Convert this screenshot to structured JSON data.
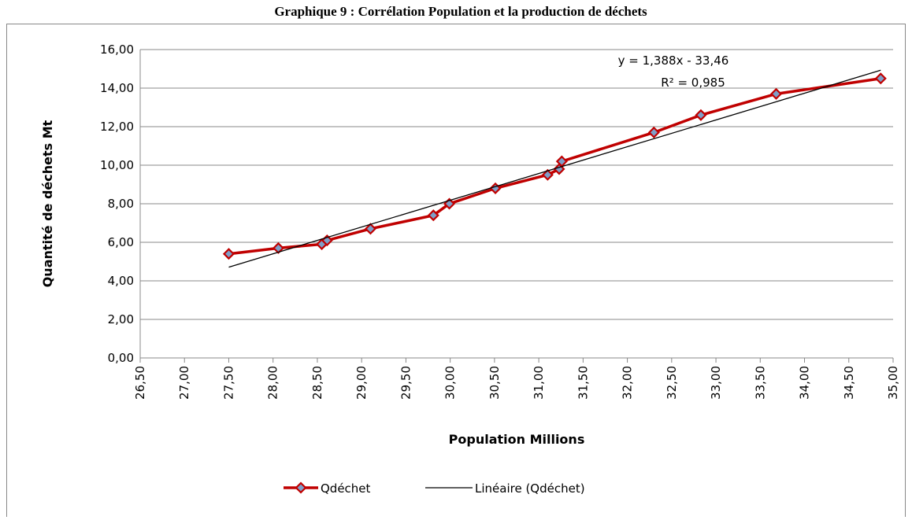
{
  "chart_data": {
    "type": "line",
    "title": "Graphique 9 : Corrélation Population et la production de déchets",
    "x_label": "Population Millions",
    "y_label": "Quantité de déchets Mt",
    "annotations": [
      "y = 1,388x - 33,46",
      "R² = 0,985"
    ],
    "xlim": [
      26.5,
      35
    ],
    "xticks": [
      {
        "value": 26.5,
        "label": "26,50"
      },
      {
        "value": 27,
        "label": "27,00"
      },
      {
        "value": 27.5,
        "label": "27,50"
      },
      {
        "value": 28,
        "label": "28,00"
      },
      {
        "value": 28.5,
        "label": "28,50"
      },
      {
        "value": 29,
        "label": "29,00"
      },
      {
        "value": 29.5,
        "label": "29,50"
      },
      {
        "value": 30,
        "label": "30,00"
      },
      {
        "value": 30.5,
        "label": "30,50"
      },
      {
        "value": 31,
        "label": "31,00"
      },
      {
        "value": 31.5,
        "label": "31,50"
      },
      {
        "value": 32,
        "label": "32,00"
      },
      {
        "value": 32.5,
        "label": "32,50"
      },
      {
        "value": 33,
        "label": "33,00"
      },
      {
        "value": 33.5,
        "label": "33,50"
      },
      {
        "value": 34,
        "label": "34,00"
      },
      {
        "value": 34.5,
        "label": "34,50"
      },
      {
        "value": 35,
        "label": "35,00"
      }
    ],
    "ylim": [
      0,
      16
    ],
    "yticks": [
      {
        "value": 0,
        "label": "0,00"
      },
      {
        "value": 2,
        "label": "2,00"
      },
      {
        "value": 4,
        "label": "4,00"
      },
      {
        "value": 6,
        "label": "6,00"
      },
      {
        "value": 8,
        "label": "8,00"
      },
      {
        "value": 10,
        "label": "10,00"
      },
      {
        "value": 12,
        "label": "12,00"
      },
      {
        "value": 14,
        "label": "14,00"
      },
      {
        "value": 16,
        "label": "16,00"
      }
    ],
    "grid": true,
    "legend": "bottom",
    "series": [
      {
        "name": "Qdéchet",
        "color": "#c00000",
        "marker_color": "#7f9fc8",
        "x": [
          27.5,
          28.06,
          28.55,
          28.61,
          29.1,
          29.81,
          29.99,
          30.51,
          31.1,
          31.23,
          31.26,
          32.3,
          32.83,
          33.68,
          34.86
        ],
        "values": [
          5.4,
          5.7,
          5.9,
          6.1,
          6.7,
          7.4,
          8.0,
          8.8,
          9.5,
          9.8,
          10.2,
          11.7,
          12.6,
          13.7,
          14.5
        ]
      },
      {
        "name": "Linéaire (Qdéchet)",
        "color": "#000000",
        "x": [
          27.5,
          34.86
        ],
        "values": [
          4.71,
          14.93
        ]
      }
    ]
  }
}
